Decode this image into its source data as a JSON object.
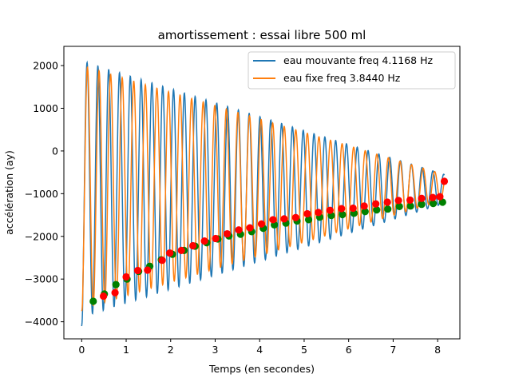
{
  "chart_data": {
    "type": "line",
    "title": "amortissement : essai libre 500 ml",
    "xlabel": "Temps (en secondes)",
    "ylabel": "accélération  (ay)",
    "xlim": [
      -0.4,
      8.5
    ],
    "ylim": [
      -4400,
      2450
    ],
    "xticks": [
      0,
      1,
      2,
      3,
      4,
      5,
      6,
      7,
      8
    ],
    "yticks": [
      -4000,
      -3000,
      -2000,
      -1000,
      0,
      1000,
      2000
    ],
    "grid": false,
    "legend_position": "top-right",
    "series": [
      {
        "name": "eau mouvante freq 4.1168 Hz",
        "color": "#1f77b4",
        "freq": 4.1168,
        "t_start": 0.0,
        "t_end": 8.15,
        "offset": -890,
        "amp_start": 3000,
        "amp_end": 340,
        "start_value": -4100
      },
      {
        "name": "eau fixe freq 3.8440 Hz",
        "color": "#ff7f0e",
        "freq": 3.844,
        "t_start": 0.0,
        "t_end": 8.15,
        "offset": -850,
        "amp_start": 2850,
        "amp_end": 300,
        "start_value": -3750
      }
    ],
    "minima_markers": [
      {
        "series": "eau mouvante freq 4.1168 Hz",
        "color": "#008000",
        "x": [
          0.26,
          0.51,
          0.77,
          1.02,
          1.28,
          1.53,
          1.79,
          2.04,
          2.3,
          2.55,
          2.81,
          3.06,
          3.31,
          3.57,
          3.82,
          4.08,
          4.33,
          4.59,
          4.84,
          5.1,
          5.35,
          5.61,
          5.86,
          6.12,
          6.37,
          6.63,
          6.88,
          7.14,
          7.39,
          7.64,
          7.9,
          8.11
        ],
        "y": [
          -3520,
          -3350,
          -3130,
          -3000,
          -2820,
          -2700,
          -2550,
          -2420,
          -2330,
          -2230,
          -2150,
          -2060,
          -1990,
          -1950,
          -1890,
          -1810,
          -1730,
          -1690,
          -1640,
          -1610,
          -1550,
          -1510,
          -1490,
          -1460,
          -1420,
          -1380,
          -1360,
          -1300,
          -1290,
          -1250,
          -1230,
          -1200
        ]
      },
      {
        "series": "eau fixe freq 3.8440 Hz",
        "color": "#ff0000",
        "x": [
          0.49,
          0.75,
          1.0,
          1.26,
          1.48,
          1.81,
          1.98,
          2.24,
          2.5,
          2.76,
          3.01,
          3.27,
          3.53,
          3.78,
          4.04,
          4.3,
          4.55,
          4.81,
          5.07,
          5.32,
          5.58,
          5.84,
          6.1,
          6.35,
          6.61,
          6.87,
          7.12,
          7.38,
          7.64,
          7.89,
          8.05,
          8.15
        ],
        "y": [
          -3400,
          -3320,
          -2950,
          -2800,
          -2790,
          -2560,
          -2390,
          -2330,
          -2220,
          -2110,
          -2050,
          -1940,
          -1850,
          -1800,
          -1710,
          -1610,
          -1590,
          -1560,
          -1470,
          -1440,
          -1390,
          -1350,
          -1340,
          -1290,
          -1240,
          -1200,
          -1160,
          -1150,
          -1110,
          -1090,
          -1070,
          -710
        ]
      }
    ]
  }
}
